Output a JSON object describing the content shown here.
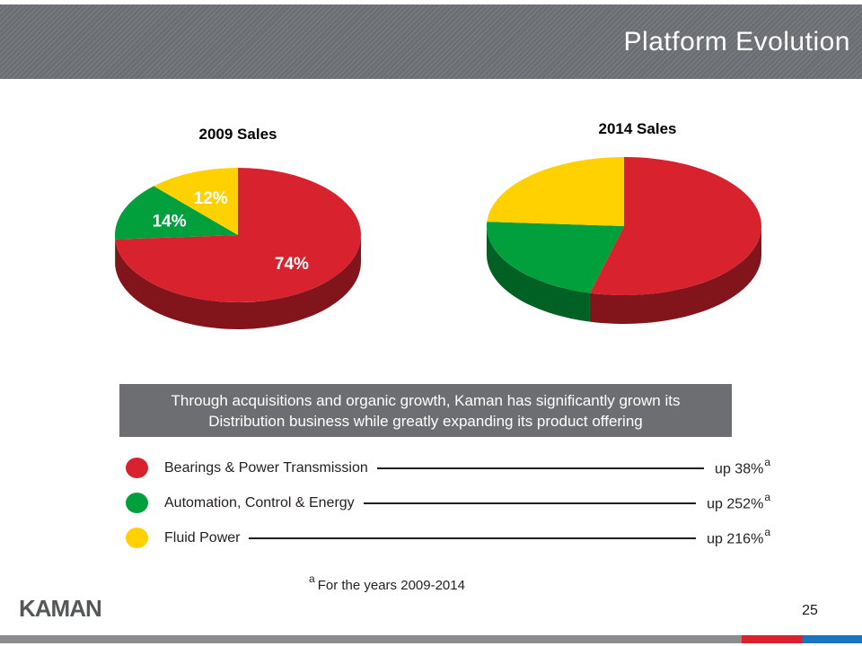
{
  "slide": {
    "title": "Platform Evolution",
    "message_line1": "Through acquisitions and organic growth, Kaman has significantly grown its",
    "message_line2": "Distribution business while greatly expanding its product offering",
    "footnote": {
      "marker": "a",
      "text": "For the years 2009-2014"
    },
    "logo_text": "KAMAN",
    "page_number": "25"
  },
  "chart_data": [
    {
      "type": "pie",
      "style": "3d",
      "title": "2009 Sales",
      "start_angle_deg": 0,
      "direction": "clockwise",
      "slices": [
        {
          "name": "Bearings & Power Transmission",
          "value": 74,
          "label": "74%",
          "color": "#D8232F"
        },
        {
          "name": "Automation, Control & Energy",
          "value": 14,
          "label": "14%",
          "color": "#02A03C"
        },
        {
          "name": "Fluid Power",
          "value": 12,
          "label": "12%",
          "color": "#FFD100"
        }
      ]
    },
    {
      "type": "pie",
      "style": "3d",
      "title": "2014 Sales",
      "start_angle_deg": 0,
      "direction": "clockwise",
      "slices": [
        {
          "name": "Bearings & Power Transmission",
          "value": 54,
          "label": "",
          "color": "#D8232F"
        },
        {
          "name": "Automation, Control & Energy",
          "value": 22,
          "label": "",
          "color": "#02A03C"
        },
        {
          "name": "Fluid Power",
          "value": 24,
          "label": "",
          "color": "#FFD100"
        }
      ]
    }
  ],
  "legend": {
    "items": [
      {
        "label": "Bearings & Power Transmission",
        "change": "up 38%",
        "note_marker": "a",
        "color": "#D8232F"
      },
      {
        "label": "Automation, Control & Energy",
        "change": "up 252%",
        "note_marker": "a",
        "color": "#02A03C"
      },
      {
        "label": "Fluid Power",
        "change": "up 216%",
        "note_marker": "a",
        "color": "#FFD100"
      }
    ]
  },
  "colors": {
    "banner_gray": "#6B6E73",
    "box_gray": "#6D6E71",
    "footer_bar_gray": "#8A8C8F",
    "footer_bar_red": "#D8232F",
    "footer_bar_blue": "#1C75BB",
    "logo_gray": "#56575A"
  }
}
